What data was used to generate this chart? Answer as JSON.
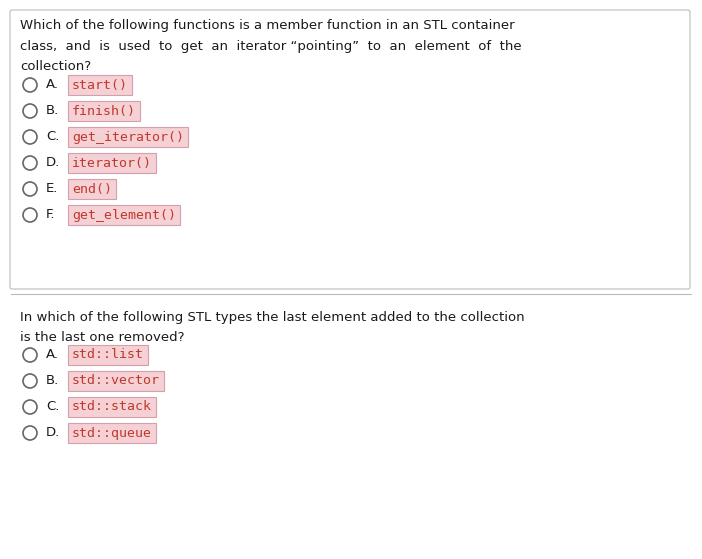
{
  "background_color": "#ffffff",
  "q1": {
    "question_lines": [
      "Which of the following functions is a member function in an STL container",
      "class,  and  is  used  to  get  an  iterator “pointing”  to  an  element  of  the",
      "collection?"
    ],
    "options": [
      {
        "label": "A.",
        "code": "start()"
      },
      {
        "label": "B.",
        "code": "finish()"
      },
      {
        "label": "C.",
        "code": "get_iterator()"
      },
      {
        "label": "D.",
        "code": "iterator()"
      },
      {
        "label": "E.",
        "code": "end()"
      },
      {
        "label": "F.",
        "code": "get_element()"
      }
    ]
  },
  "q2": {
    "question_lines": [
      "In which of the following STL types the last element added to the collection",
      "is the last one removed?"
    ],
    "options": [
      {
        "label": "A.",
        "code": "std::list"
      },
      {
        "label": "B.",
        "code": "std::vector"
      },
      {
        "label": "C.",
        "code": "std::stack"
      },
      {
        "label": "D.",
        "code": "std::queue"
      }
    ]
  },
  "box_bg": "#f5d0d5",
  "box_border": "#d4a0aa",
  "code_color": "#c0392b",
  "text_color": "#1a1a1a",
  "label_color": "#1a1a1a",
  "circle_edgecolor": "#666666",
  "divider_color": "#bbbbbb",
  "q1_box_edgecolor": "#bbbbbb",
  "q1_text_fontsize": 9.5,
  "opt_fontsize": 9.5,
  "code_fontsize": 9.5
}
